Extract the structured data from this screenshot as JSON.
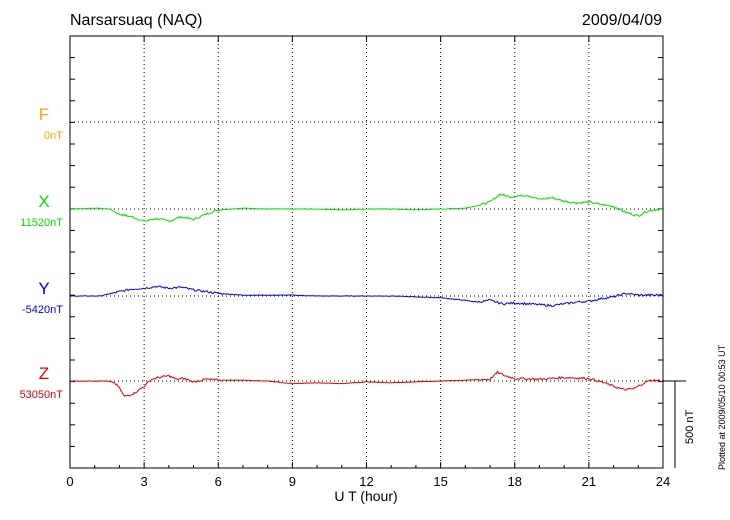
{
  "chart_data": {
    "type": "line",
    "title": "Narsarsuaq (NAQ)",
    "date": "2009/04/09",
    "xlabel": "U T (hour)",
    "xlim": [
      0,
      24
    ],
    "xticks": [
      "0",
      "3",
      "6",
      "9",
      "12",
      "15",
      "18",
      "21",
      "24"
    ],
    "scale_label": "500 nT",
    "plotted_note": "Plotted at 2009/05/10 00:53 UT",
    "series": [
      {
        "name": "F",
        "baseline": "0nT",
        "color": "#FFA500",
        "points": []
      },
      {
        "name": "X",
        "baseline": "11520nT",
        "color": "#00E000",
        "points": [
          [
            0,
            0
          ],
          [
            1,
            5
          ],
          [
            1.6,
            0
          ],
          [
            2,
            -30
          ],
          [
            2.5,
            -45
          ],
          [
            3,
            -70
          ],
          [
            3.5,
            -55
          ],
          [
            4,
            -70
          ],
          [
            4.5,
            -45
          ],
          [
            5,
            -60
          ],
          [
            5.5,
            -30
          ],
          [
            6,
            -5
          ],
          [
            7,
            5
          ],
          [
            8,
            0
          ],
          [
            9,
            0
          ],
          [
            10,
            0
          ],
          [
            11,
            -5
          ],
          [
            12,
            0
          ],
          [
            13,
            0
          ],
          [
            14,
            -5
          ],
          [
            15,
            0
          ],
          [
            16,
            5
          ],
          [
            16.5,
            20
          ],
          [
            17,
            40
          ],
          [
            17.4,
            85
          ],
          [
            17.8,
            70
          ],
          [
            18.5,
            80
          ],
          [
            19,
            55
          ],
          [
            19.5,
            65
          ],
          [
            20,
            45
          ],
          [
            20.5,
            35
          ],
          [
            21,
            40
          ],
          [
            21.5,
            25
          ],
          [
            22,
            15
          ],
          [
            22.5,
            -20
          ],
          [
            23,
            -40
          ],
          [
            23.3,
            -15
          ],
          [
            23.6,
            -5
          ],
          [
            24,
            0
          ]
        ]
      },
      {
        "name": "Y",
        "baseline": "-5420nT",
        "color": "#0000E0",
        "points": [
          [
            0,
            0
          ],
          [
            1.2,
            0
          ],
          [
            2,
            25
          ],
          [
            2.5,
            40
          ],
          [
            3,
            45
          ],
          [
            3.5,
            55
          ],
          [
            4,
            45
          ],
          [
            4.5,
            50
          ],
          [
            5,
            35
          ],
          [
            5.5,
            25
          ],
          [
            6,
            15
          ],
          [
            7,
            5
          ],
          [
            8,
            5
          ],
          [
            9,
            5
          ],
          [
            10,
            0
          ],
          [
            11,
            0
          ],
          [
            12,
            0
          ],
          [
            13,
            0
          ],
          [
            14,
            -5
          ],
          [
            15,
            -10
          ],
          [
            16,
            -25
          ],
          [
            16.5,
            -35
          ],
          [
            17,
            -25
          ],
          [
            17.5,
            -45
          ],
          [
            18,
            -40
          ],
          [
            19,
            -50
          ],
          [
            19.5,
            -55
          ],
          [
            20,
            -45
          ],
          [
            20.5,
            -35
          ],
          [
            21,
            -30
          ],
          [
            21.5,
            -15
          ],
          [
            22,
            -5
          ],
          [
            22.5,
            15
          ],
          [
            23,
            5
          ],
          [
            23.5,
            5
          ],
          [
            24,
            5
          ]
        ]
      },
      {
        "name": "Z",
        "baseline": "53050nT",
        "color": "#E00000",
        "points": [
          [
            0,
            0
          ],
          [
            1.5,
            0
          ],
          [
            1.8,
            -10
          ],
          [
            2,
            -40
          ],
          [
            2.2,
            -90
          ],
          [
            2.6,
            -70
          ],
          [
            3,
            -30
          ],
          [
            3.3,
            10
          ],
          [
            3.6,
            20
          ],
          [
            4,
            30
          ],
          [
            4.3,
            10
          ],
          [
            4.6,
            15
          ],
          [
            5,
            -5
          ],
          [
            5.5,
            10
          ],
          [
            6,
            5
          ],
          [
            7,
            5
          ],
          [
            8,
            0
          ],
          [
            9,
            -15
          ],
          [
            10,
            -10
          ],
          [
            11,
            -15
          ],
          [
            12,
            -5
          ],
          [
            13,
            -10
          ],
          [
            14,
            -5
          ],
          [
            15,
            0
          ],
          [
            16,
            5
          ],
          [
            17,
            10
          ],
          [
            17.3,
            50
          ],
          [
            17.6,
            30
          ],
          [
            18,
            15
          ],
          [
            19,
            10
          ],
          [
            20,
            20
          ],
          [
            21,
            15
          ],
          [
            21.5,
            -5
          ],
          [
            22,
            -30
          ],
          [
            22.4,
            -50
          ],
          [
            22.8,
            -45
          ],
          [
            23,
            -30
          ],
          [
            23.3,
            -5
          ],
          [
            23.6,
            5
          ],
          [
            24,
            0
          ]
        ]
      }
    ]
  }
}
